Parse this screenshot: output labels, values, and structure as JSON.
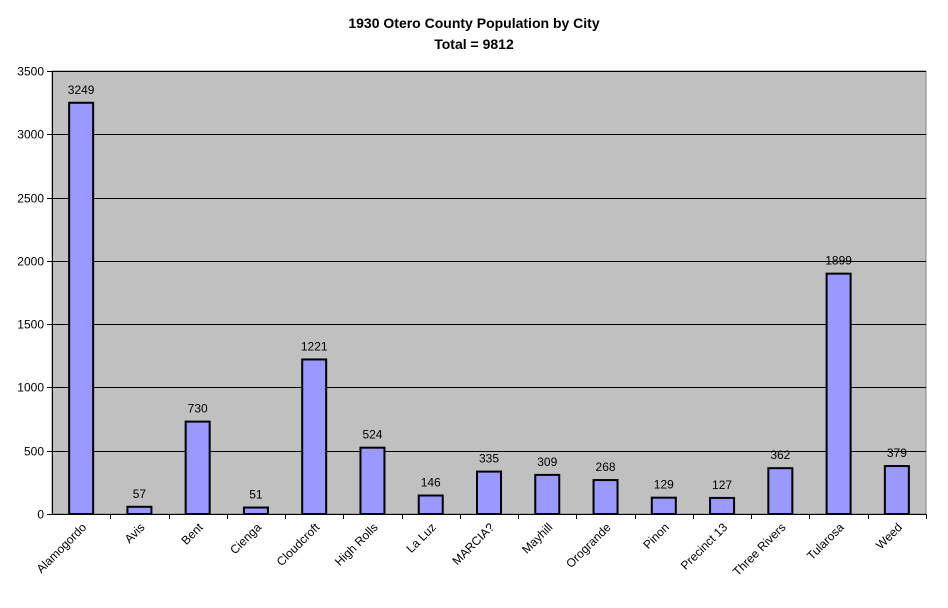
{
  "chart_data": {
    "type": "bar",
    "title": "1930 Otero County Population by City",
    "subtitle": "Total = 9812",
    "xlabel": "",
    "ylabel": "",
    "categories": [
      "Alamogordo",
      "Avis",
      "Bent",
      "Cienga",
      "Cloudcroft",
      "High Rolls",
      "La Luz",
      "MARCIA?",
      "Mayhill",
      "Orogrande",
      "Pinon",
      "Precinct 13",
      "Three Rivers",
      "Tularosa",
      "Weed"
    ],
    "values": [
      3249,
      57,
      730,
      51,
      1221,
      524,
      146,
      335,
      309,
      268,
      129,
      127,
      362,
      1899,
      379
    ],
    "ylim": [
      0,
      3500
    ],
    "yticks": [
      0,
      500,
      1000,
      1500,
      2000,
      2500,
      3000,
      3500
    ],
    "grid": true,
    "legend": "none",
    "colors": {
      "bar_fill": "#9999ff",
      "bar_stroke": "#000000",
      "plot_background": "#c0c0c0",
      "gridline": "#000000"
    }
  }
}
